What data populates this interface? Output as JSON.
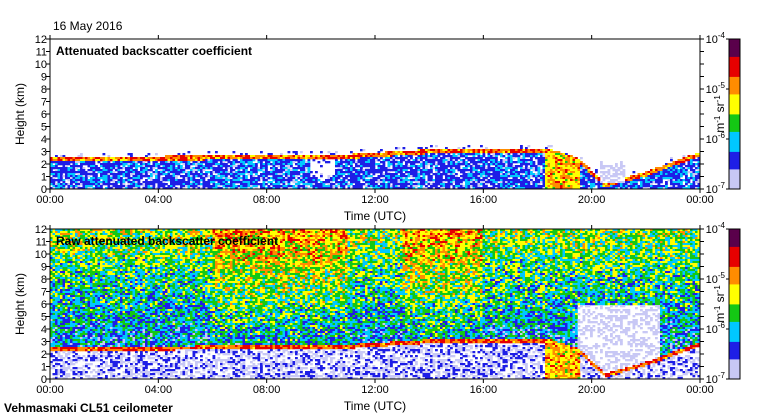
{
  "header": {
    "date": "16 May 2016"
  },
  "footer": {
    "source": "Vehmasmaki CL51 ceilometer"
  },
  "colors": {
    "white": "#ffffff",
    "lavender": "#c8c8f5",
    "blue": "#1e1ee6",
    "cyan": "#00c8ff",
    "green": "#14c814",
    "yellow": "#ffff00",
    "orange": "#ff8c00",
    "red": "#e60000",
    "purple": "#5a004b"
  },
  "chart_data": [
    {
      "type": "heatmap",
      "title": "Attenuated backscatter coefficient",
      "xlabel": "Time (UTC)",
      "ylabel": "Height (km)",
      "x_ticks": [
        "00:00",
        "04:00",
        "08:00",
        "12:00",
        "16:00",
        "20:00",
        "00:00"
      ],
      "x_range_hours": [
        0,
        24
      ],
      "y_ticks": [
        0,
        1,
        2,
        3,
        4,
        5,
        6,
        7,
        8,
        9,
        10,
        11,
        12
      ],
      "ylim": [
        0,
        12
      ],
      "colorbar": {
        "unit_base": "m",
        "unit_exp": "-1",
        "unit_base2": "sr",
        "unit_exp2": "-1",
        "ticks": [
          {
            "base": "10",
            "exp": "-4"
          },
          {
            "base": "10",
            "exp": "-5"
          },
          {
            "base": "10",
            "exp": "-6"
          },
          {
            "base": "10",
            "exp": "-7"
          }
        ],
        "scale": "log",
        "range": [
          1e-07,
          0.0001
        ]
      },
      "features": {
        "boundary_layer_top_km": [
          [
            0,
            2.2
          ],
          [
            2,
            2.3
          ],
          [
            6,
            2.4
          ],
          [
            9.5,
            2.5
          ],
          [
            12,
            2.6
          ],
          [
            14,
            2.9
          ],
          [
            16,
            3.0
          ],
          [
            18.5,
            2.9
          ],
          [
            19.5,
            2.2
          ],
          [
            20.5,
            0.3
          ],
          [
            22,
            1.0
          ],
          [
            23,
            2.0
          ],
          [
            24,
            2.6
          ]
        ],
        "cloud_base_km": [
          [
            2,
            2.4
          ],
          [
            9.5,
            2.6
          ],
          [
            11,
            2.6
          ],
          [
            14,
            3.0
          ],
          [
            17,
            3.1
          ],
          [
            18.5,
            3.0
          ],
          [
            19.5,
            2.3
          ],
          [
            20.5,
            0.3
          ],
          [
            22,
            1.2
          ],
          [
            24,
            2.8
          ]
        ],
        "precipitation_hours": [
          18.3,
          19.6
        ],
        "gap_hours": [
          9.6,
          10.5
        ]
      }
    },
    {
      "type": "heatmap",
      "title": "Raw attenuated backscatter coefficient",
      "xlabel": "Time (UTC)",
      "ylabel": "Height (km)",
      "x_ticks": [
        "00:00",
        "04:00",
        "08:00",
        "12:00",
        "16:00",
        "20:00",
        "00:00"
      ],
      "x_range_hours": [
        0,
        24
      ],
      "y_ticks": [
        0,
        1,
        2,
        3,
        4,
        5,
        6,
        7,
        8,
        9,
        10,
        11,
        12
      ],
      "ylim": [
        0,
        12
      ],
      "colorbar": {
        "unit_base": "m",
        "unit_exp": "-1",
        "unit_base2": "sr",
        "unit_exp2": "-1",
        "ticks": [
          {
            "base": "10",
            "exp": "-4"
          },
          {
            "base": "10",
            "exp": "-5"
          },
          {
            "base": "10",
            "exp": "-6"
          },
          {
            "base": "10",
            "exp": "-7"
          }
        ],
        "scale": "log",
        "range": [
          1e-07,
          0.0001
        ]
      },
      "features": {
        "noise_high_hours": [
          [
            6,
            11
          ],
          [
            13,
            16
          ]
        ],
        "cloud_base_km": [
          [
            2,
            2.4
          ],
          [
            9.5,
            2.6
          ],
          [
            11,
            2.6
          ],
          [
            14,
            3.0
          ],
          [
            17,
            3.1
          ],
          [
            18.5,
            3.0
          ],
          [
            19.5,
            2.3
          ],
          [
            20.5,
            0.3
          ],
          [
            22,
            1.2
          ],
          [
            24,
            2.8
          ]
        ],
        "precipitation_hours": [
          18.3,
          19.6
        ]
      }
    }
  ]
}
